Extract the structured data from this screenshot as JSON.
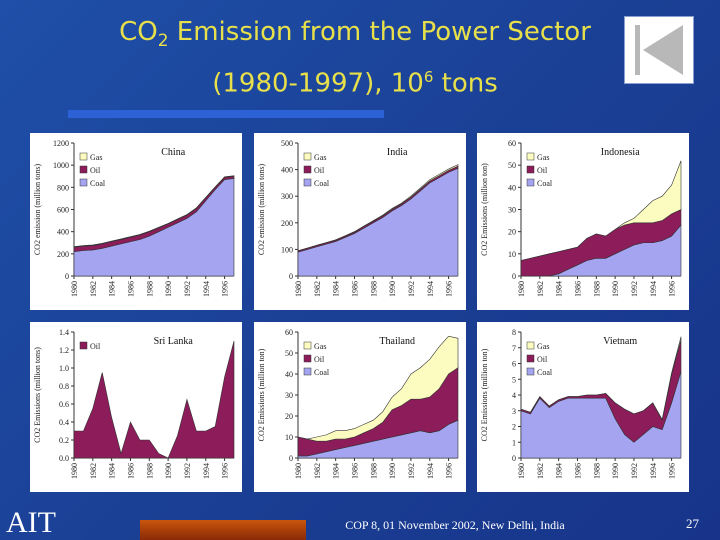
{
  "slide": {
    "title_line1_pre": "CO",
    "title_line1_sub": "2",
    "title_line1_post": " Emission from the Power Sector",
    "title_line2_pre": "(1980-1997), 10",
    "title_line2_sup": "6",
    "title_line2_post": " tons",
    "logo": "AIT",
    "footer": "COP 8, 01 November 2002, New Delhi, India",
    "page_number": "27"
  },
  "colors": {
    "gas": "#fcfcc0",
    "oil": "#8c1c5a",
    "coal": "#a4a4f0",
    "title": "#e8e04a"
  },
  "chart_data": [
    {
      "type": "area",
      "stacked": true,
      "title": "China",
      "ylabel": "CO2 emission (million tons)",
      "ylim": [
        0,
        1200
      ],
      "yticks": [
        0,
        200,
        400,
        600,
        800,
        1000,
        1200
      ],
      "xticks": [
        "1980",
        "1982",
        "1984",
        "1986",
        "1988",
        "1990",
        "1992",
        "1994",
        "1996"
      ],
      "x": [
        1980,
        1981,
        1982,
        1983,
        1984,
        1985,
        1986,
        1987,
        1988,
        1989,
        1990,
        1991,
        1992,
        1993,
        1994,
        1995,
        1996,
        1997
      ],
      "series": [
        {
          "name": "Coal",
          "values": [
            220,
            230,
            235,
            250,
            270,
            290,
            310,
            330,
            360,
            400,
            440,
            480,
            520,
            580,
            680,
            780,
            870,
            880
          ]
        },
        {
          "name": "Oil",
          "values": [
            40,
            40,
            40,
            40,
            40,
            40,
            40,
            40,
            40,
            35,
            30,
            30,
            30,
            30,
            25,
            20,
            20,
            20
          ]
        },
        {
          "name": "Gas",
          "values": [
            5,
            5,
            5,
            5,
            5,
            5,
            5,
            5,
            5,
            5,
            5,
            5,
            5,
            5,
            5,
            5,
            5,
            5
          ]
        }
      ],
      "legend": [
        "Gas",
        "Oil",
        "Coal"
      ]
    },
    {
      "type": "area",
      "stacked": true,
      "title": "India",
      "ylabel": "CO2 emission (million tons)",
      "ylim": [
        0,
        500
      ],
      "yticks": [
        0,
        100,
        200,
        300,
        400,
        500
      ],
      "xticks": [
        "1980",
        "1982",
        "1984",
        "1986",
        "1988",
        "1990",
        "1992",
        "1994",
        "1996"
      ],
      "x": [
        1980,
        1981,
        1982,
        1983,
        1984,
        1985,
        1986,
        1987,
        1988,
        1989,
        1990,
        1991,
        1992,
        1993,
        1994,
        1995,
        1996,
        1997
      ],
      "series": [
        {
          "name": "Coal",
          "values": [
            90,
            100,
            110,
            120,
            130,
            145,
            160,
            180,
            200,
            220,
            245,
            265,
            290,
            320,
            350,
            370,
            390,
            405
          ]
        },
        {
          "name": "Oil",
          "values": [
            5,
            5,
            5,
            5,
            5,
            5,
            5,
            6,
            6,
            6,
            6,
            6,
            7,
            7,
            7,
            7,
            7,
            8
          ]
        },
        {
          "name": "Gas",
          "values": [
            0,
            0,
            1,
            1,
            1,
            1,
            2,
            2,
            2,
            3,
            3,
            3,
            4,
            4,
            5,
            5,
            5,
            6
          ]
        }
      ],
      "legend": [
        "Gas",
        "Oil",
        "Coal"
      ]
    },
    {
      "type": "area",
      "stacked": true,
      "title": "Indonesia",
      "ylabel": "CO2 Emissions (million ton)",
      "ylim": [
        0,
        60
      ],
      "yticks": [
        0,
        10,
        20,
        30,
        40,
        50,
        60
      ],
      "xticks": [
        "1980",
        "1982",
        "1984",
        "1986",
        "1988",
        "1990",
        "1992",
        "1994",
        "1996"
      ],
      "x": [
        1980,
        1981,
        1982,
        1983,
        1984,
        1985,
        1986,
        1987,
        1988,
        1989,
        1990,
        1991,
        1992,
        1993,
        1994,
        1995,
        1996,
        1997
      ],
      "series": [
        {
          "name": "Coal",
          "values": [
            0,
            0,
            0,
            0,
            1,
            3,
            5,
            7,
            8,
            8,
            10,
            12,
            14,
            15,
            15,
            16,
            18,
            23
          ]
        },
        {
          "name": "Oil",
          "values": [
            7,
            8,
            9,
            10,
            10,
            9,
            8,
            10,
            11,
            10,
            11,
            11,
            10,
            9,
            9,
            9,
            10,
            7
          ]
        },
        {
          "name": "Gas",
          "values": [
            0,
            0,
            0,
            0,
            0,
            0,
            0,
            0,
            0,
            0,
            0,
            1,
            2,
            6,
            10,
            11,
            13,
            22
          ]
        }
      ],
      "legend": [
        "Gas",
        "Oil",
        "Coal"
      ]
    },
    {
      "type": "area",
      "title": "Sri Lanka",
      "ylabel": "CO2 Emissions (million tons)",
      "ylim": [
        0,
        1.4
      ],
      "yticks": [
        0,
        0.2,
        0.4,
        0.6,
        0.8,
        1.0,
        1.2,
        1.4
      ],
      "xticks": [
        "1980",
        "1982",
        "1984",
        "1986",
        "1988",
        "1990",
        "1992",
        "1994",
        "1996"
      ],
      "x": [
        1980,
        1981,
        1982,
        1983,
        1984,
        1985,
        1986,
        1987,
        1988,
        1989,
        1990,
        1991,
        1992,
        1993,
        1994,
        1995,
        1996,
        1997
      ],
      "series": [
        {
          "name": "Oil",
          "values": [
            0.3,
            0.3,
            0.55,
            0.95,
            0.45,
            0.05,
            0.4,
            0.2,
            0.2,
            0.05,
            0.0,
            0.25,
            0.65,
            0.3,
            0.3,
            0.35,
            0.9,
            1.3
          ]
        }
      ],
      "legend": [
        "Oil"
      ]
    },
    {
      "type": "area",
      "stacked": true,
      "title": "Thailand",
      "ylabel": "CO2 Emissions (million ton)",
      "ylim": [
        0,
        60
      ],
      "yticks": [
        0,
        10,
        20,
        30,
        40,
        50,
        60
      ],
      "xticks": [
        "1980",
        "1982",
        "1984",
        "1986",
        "1988",
        "1990",
        "1992",
        "1994",
        "1996"
      ],
      "x": [
        1980,
        1981,
        1982,
        1983,
        1984,
        1985,
        1986,
        1987,
        1988,
        1989,
        1990,
        1991,
        1992,
        1993,
        1994,
        1995,
        1996,
        1997
      ],
      "series": [
        {
          "name": "Coal",
          "values": [
            1,
            1,
            2,
            3,
            4,
            5,
            6,
            7,
            8,
            9,
            10,
            11,
            12,
            13,
            12,
            13,
            16,
            18
          ]
        },
        {
          "name": "Oil",
          "values": [
            9,
            8,
            6,
            5,
            5,
            4,
            4,
            5,
            6,
            8,
            13,
            14,
            16,
            15,
            17,
            20,
            24,
            25
          ]
        },
        {
          "name": "Gas",
          "values": [
            0,
            0,
            2,
            3,
            4,
            4,
            4,
            4,
            4,
            5,
            6,
            8,
            12,
            15,
            18,
            20,
            18,
            14
          ]
        }
      ],
      "legend": [
        "Gas",
        "Oil",
        "Coal"
      ]
    },
    {
      "type": "area",
      "stacked": true,
      "title": "Vietnam",
      "ylabel": "CO2 Emissions (million ton)",
      "ylim": [
        0,
        8
      ],
      "yticks": [
        0,
        1,
        2,
        3,
        4,
        5,
        6,
        7,
        8
      ],
      "xticks": [
        "1980",
        "1982",
        "1984",
        "1986",
        "1988",
        "1990",
        "1992",
        "1994",
        "1996"
      ],
      "x": [
        1980,
        1981,
        1982,
        1983,
        1984,
        1985,
        1986,
        1987,
        1988,
        1989,
        1990,
        1991,
        1992,
        1993,
        1994,
        1995,
        1996,
        1997
      ],
      "series": [
        {
          "name": "Coal",
          "values": [
            3.0,
            2.8,
            3.8,
            3.2,
            3.6,
            3.8,
            3.8,
            3.8,
            3.8,
            3.8,
            2.5,
            1.5,
            1.0,
            1.5,
            2.0,
            1.8,
            3.5,
            5.5
          ]
        },
        {
          "name": "Oil",
          "values": [
            0.1,
            0.1,
            0.1,
            0.1,
            0.1,
            0.1,
            0.1,
            0.2,
            0.2,
            0.3,
            1.0,
            1.6,
            1.8,
            1.5,
            1.5,
            0.6,
            1.8,
            2.0
          ]
        },
        {
          "name": "Gas",
          "values": [
            0,
            0,
            0,
            0,
            0,
            0,
            0,
            0,
            0,
            0,
            0,
            0,
            0,
            0,
            0,
            0.05,
            0.1,
            0.2
          ]
        }
      ],
      "legend": [
        "Gas",
        "Oil",
        "Coal"
      ]
    }
  ]
}
